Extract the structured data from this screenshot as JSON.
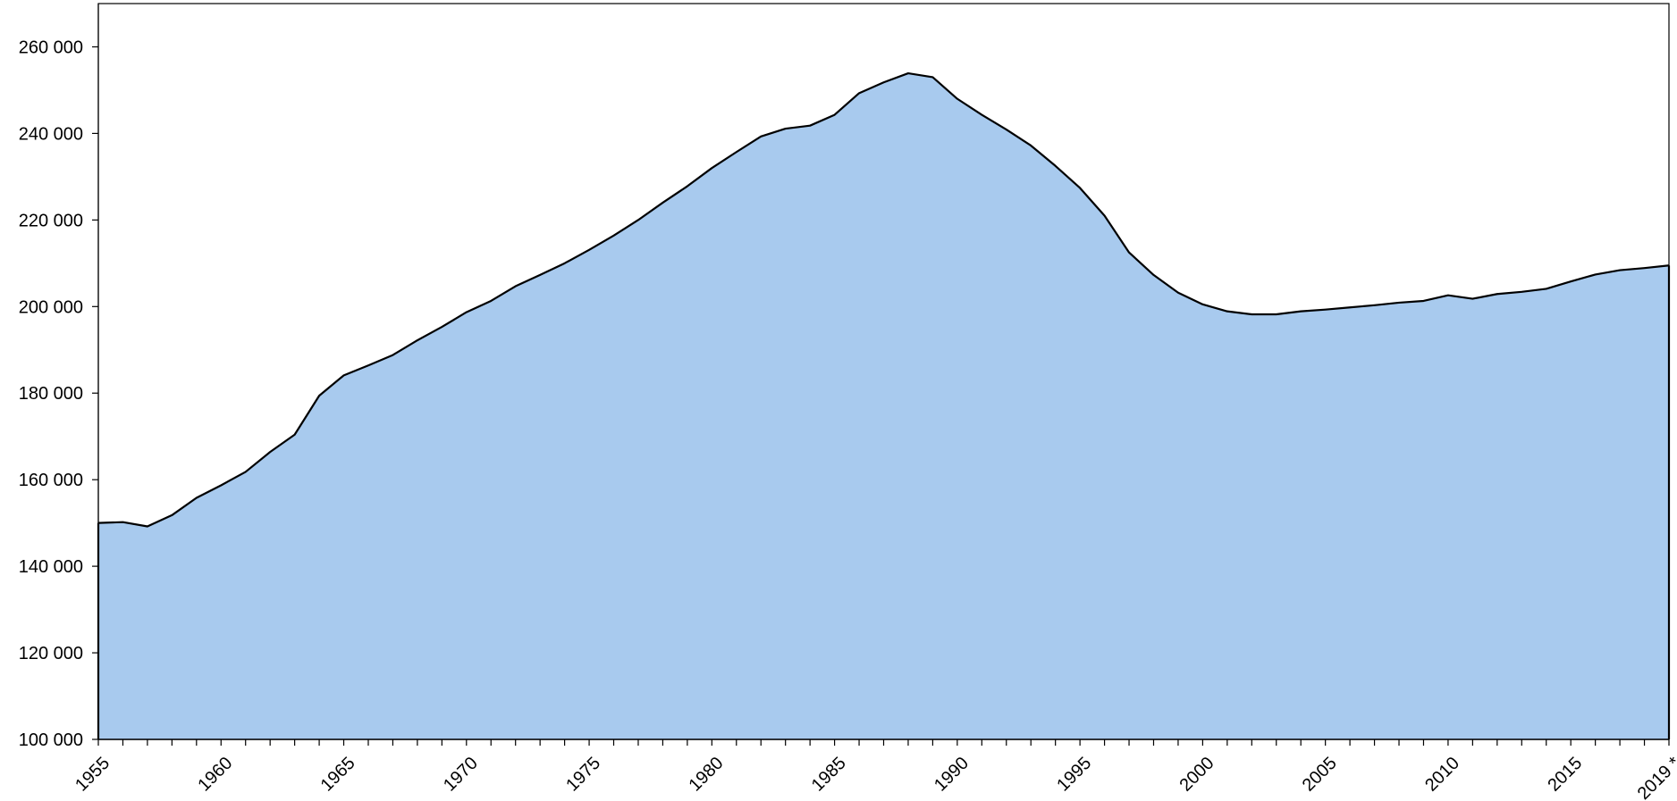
{
  "chart_data": {
    "type": "area",
    "title": "",
    "xlabel": "",
    "ylabel": "",
    "x": [
      1955,
      1956,
      1957,
      1958,
      1959,
      1960,
      1961,
      1962,
      1963,
      1964,
      1965,
      1966,
      1967,
      1968,
      1969,
      1970,
      1971,
      1972,
      1973,
      1974,
      1975,
      1976,
      1977,
      1978,
      1979,
      1980,
      1981,
      1982,
      1983,
      1984,
      1985,
      1986,
      1987,
      1988,
      1989,
      1990,
      1991,
      1992,
      1993,
      1994,
      1995,
      1996,
      1997,
      1998,
      1999,
      2000,
      2001,
      2002,
      2003,
      2004,
      2005,
      2006,
      2007,
      2008,
      2009,
      2010,
      2011,
      2012,
      2013,
      2014,
      2015,
      2016,
      2017,
      2018,
      2019
    ],
    "values": [
      150000,
      150200,
      149200,
      151800,
      155800,
      158700,
      161800,
      166400,
      170400,
      179400,
      184100,
      186400,
      188800,
      192200,
      195300,
      198700,
      201300,
      204700,
      207300,
      210000,
      213100,
      216400,
      220000,
      224000,
      227800,
      232000,
      235700,
      239300,
      241100,
      241800,
      244300,
      249300,
      251800,
      253900,
      253000,
      248000,
      244300,
      240900,
      237200,
      232500,
      227400,
      221000,
      212500,
      207300,
      203200,
      200500,
      198900,
      198200,
      198200,
      198900,
      199300,
      199800,
      200300,
      200900,
      201300,
      202600,
      201800,
      202900,
      203400,
      204100,
      205800,
      207400,
      208400,
      208900,
      209500
    ],
    "xlim": [
      1955,
      2019
    ],
    "ylim": [
      100000,
      270000
    ],
    "y_ticks": [
      {
        "value": 100000,
        "label": "100 000"
      },
      {
        "value": 120000,
        "label": "120 000"
      },
      {
        "value": 140000,
        "label": "140 000"
      },
      {
        "value": 160000,
        "label": "160 000"
      },
      {
        "value": 180000,
        "label": "180 000"
      },
      {
        "value": 200000,
        "label": "200 000"
      },
      {
        "value": 220000,
        "label": "220 000"
      },
      {
        "value": 240000,
        "label": "240 000"
      },
      {
        "value": 260000,
        "label": "260 000"
      }
    ],
    "x_tick_labels": [
      {
        "value": 1955,
        "label": "1955"
      },
      {
        "value": 1960,
        "label": "1960"
      },
      {
        "value": 1965,
        "label": "1965"
      },
      {
        "value": 1970,
        "label": "1970"
      },
      {
        "value": 1975,
        "label": "1975"
      },
      {
        "value": 1980,
        "label": "1980"
      },
      {
        "value": 1985,
        "label": "1985"
      },
      {
        "value": 1990,
        "label": "1990"
      },
      {
        "value": 1995,
        "label": "1995"
      },
      {
        "value": 2000,
        "label": "2000"
      },
      {
        "value": 2005,
        "label": "2005"
      },
      {
        "value": 2010,
        "label": "2010"
      },
      {
        "value": 2015,
        "label": "2015"
      },
      {
        "value": 2019,
        "label": "2019 *"
      }
    ],
    "grid": false,
    "legend": "none",
    "fill_color": "#a8caee",
    "line_color": "#000000"
  }
}
